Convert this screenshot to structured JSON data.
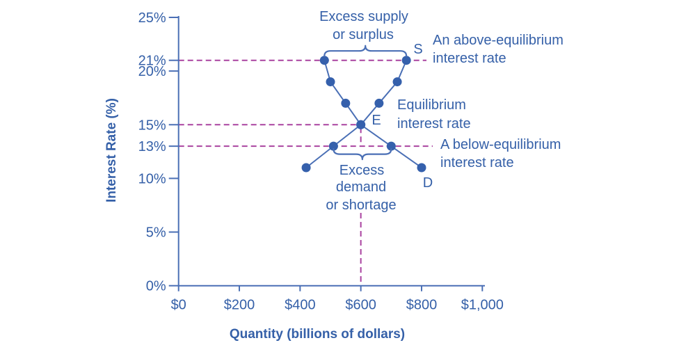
{
  "colors": {
    "text_blue": "#3560a8",
    "curve_blue": "#4a6fb5",
    "point_blue": "#3560ac",
    "axis_blue": "#4a6fb5",
    "magenta": "#a9429f"
  },
  "chart_data": {
    "type": "line",
    "title": "",
    "xlabel": "Quantity (billions of dollars)",
    "ylabel": "Interest Rate (%)",
    "xlim": [
      0,
      1000
    ],
    "ylim": [
      0,
      25
    ],
    "grid": false,
    "legend": "none",
    "x_ticks": [
      {
        "value": 0,
        "label": "$0"
      },
      {
        "value": 200,
        "label": "$200"
      },
      {
        "value": 400,
        "label": "$400"
      },
      {
        "value": 600,
        "label": "$600"
      },
      {
        "value": 800,
        "label": "$800"
      },
      {
        "value": 1000,
        "label": "$1,000"
      }
    ],
    "y_ticks": [
      {
        "value": 0,
        "label": "0%"
      },
      {
        "value": 5,
        "label": "5%"
      },
      {
        "value": 10,
        "label": "10%"
      },
      {
        "value": 13,
        "label": "13%"
      },
      {
        "value": 15,
        "label": "15%"
      },
      {
        "value": 20,
        "label": "20%"
      },
      {
        "value": 21,
        "label": "21%"
      },
      {
        "value": 25,
        "label": "25%"
      }
    ],
    "series": [
      {
        "name": "Demand",
        "points": [
          [
            480,
            21
          ],
          [
            500,
            19
          ],
          [
            550,
            17
          ],
          [
            600,
            15
          ],
          [
            700,
            13
          ],
          [
            800,
            11
          ]
        ]
      },
      {
        "name": "Supply",
        "points": [
          [
            420,
            11
          ],
          [
            510,
            13
          ],
          [
            600,
            15
          ],
          [
            660,
            17
          ],
          [
            720,
            19
          ],
          [
            750,
            21
          ]
        ]
      }
    ],
    "equilibrium": {
      "quantity": 600,
      "rate": 15
    },
    "guides": {
      "above_equilibrium_rate": 21,
      "equilibrium_rate": 15,
      "below_equilibrium_rate": 13,
      "equilibrium_quantity": 600
    },
    "braces": {
      "surplus": {
        "at_rate": 21,
        "from_quantity": 480,
        "to_quantity": 750
      },
      "shortage": {
        "at_rate": 13,
        "from_quantity": 510,
        "to_quantity": 700
      }
    }
  },
  "annotations": {
    "excess_supply_line1": "Excess supply",
    "excess_supply_line2": "or surplus",
    "above_eq_line1": "An above-equilibrium",
    "above_eq_line2": "interest rate",
    "equilibrium_line1": "Equilibrium",
    "equilibrium_line2": "interest rate",
    "below_eq_line1": "A below-equilibrium",
    "below_eq_line2": "interest rate",
    "excess_demand_line1": "Excess",
    "excess_demand_line2": "demand",
    "excess_demand_line3": "or shortage",
    "supply_curve_label": "S",
    "demand_curve_label": "D",
    "equilibrium_point_label": "E"
  }
}
